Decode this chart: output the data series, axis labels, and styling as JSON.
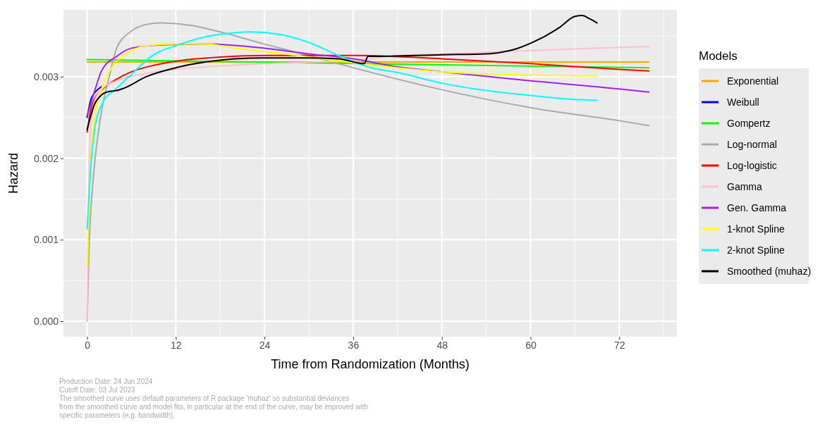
{
  "chart_data": {
    "type": "line",
    "xlabel": "Time from Randomization (Months)",
    "ylabel": "Hazard",
    "legend_title": "Models",
    "legend": "right",
    "grid": true,
    "xlim": [
      -3.2,
      79.8
    ],
    "ylim": [
      -0.00019,
      0.00382
    ],
    "xticks": [
      0,
      12,
      24,
      36,
      48,
      60,
      72
    ],
    "yticks": [
      {
        "value": 0,
        "label": "0.000"
      },
      {
        "value": 0.001,
        "label": "0.001"
      },
      {
        "value": 0.002,
        "label": "0.002"
      },
      {
        "value": 0.003,
        "label": "0.003"
      }
    ],
    "series": [
      {
        "name": "Exponential",
        "color": "#ffa500",
        "x": [
          0,
          76
        ],
        "values": [
          0.00318,
          0.00318
        ]
      },
      {
        "name": "Weibull",
        "color": "#0000ff",
        "x": [
          0,
          0.5,
          1,
          2
        ],
        "values": [
          0.0025,
          0.00272,
          0.0028,
          0.00288
        ]
      },
      {
        "name": "Gompertz",
        "color": "#00ff00",
        "x": [
          0,
          76
        ],
        "values": [
          0.00321,
          0.00311
        ]
      },
      {
        "name": "Log-normal",
        "color": "#aaaaaa",
        "x": [
          0,
          0.3,
          0.7,
          1,
          2,
          3,
          4,
          6,
          8,
          10,
          14,
          18,
          24,
          30,
          36,
          48,
          60,
          72,
          76
        ],
        "values": [
          0,
          0.001,
          0.0016,
          0.00192,
          0.0026,
          0.003,
          0.00335,
          0.00356,
          0.00364,
          0.00366,
          0.00363,
          0.00355,
          0.0034,
          0.00326,
          0.00311,
          0.00284,
          0.00262,
          0.00246,
          0.0024
        ]
      },
      {
        "name": "Log-logistic",
        "color": "#ff0000",
        "x": [
          0,
          0.5,
          1,
          2,
          4,
          6,
          9,
          12,
          18,
          24,
          36,
          48,
          60,
          72,
          76
        ],
        "values": [
          0.00232,
          0.0026,
          0.00273,
          0.00284,
          0.00297,
          0.00306,
          0.00314,
          0.00319,
          0.00324,
          0.00326,
          0.00326,
          0.00322,
          0.00316,
          0.00309,
          0.00307
        ]
      },
      {
        "name": "Gamma",
        "color": "#ffc0cb",
        "x": [
          0,
          0.2,
          0.5,
          1,
          2,
          4,
          8,
          12,
          24,
          36,
          42,
          48,
          60,
          72,
          76
        ],
        "values": [
          0,
          0.0015,
          0.0024,
          0.0027,
          0.00285,
          0.00295,
          0.00304,
          0.00309,
          0.00316,
          0.0032,
          0.00326,
          0.00328,
          0.00332,
          0.00336,
          0.00337
        ]
      },
      {
        "name": "Gen. Gamma",
        "color": "#a020f0",
        "x": [
          0,
          1,
          2,
          4,
          6,
          10,
          16,
          24,
          30,
          36,
          42,
          48,
          60,
          72,
          76
        ],
        "values": [
          0.00252,
          0.00282,
          0.00308,
          0.00325,
          0.00335,
          0.00339,
          0.0034,
          0.00335,
          0.00328,
          0.00322,
          0.00312,
          0.00306,
          0.00295,
          0.00285,
          0.00281
        ]
      },
      {
        "name": "1-knot Spline",
        "color": "#ffff00",
        "x": [
          0,
          0.5,
          1,
          2,
          3,
          4,
          6,
          8,
          12,
          16,
          20,
          24,
          30,
          36,
          42,
          48,
          60,
          69
        ],
        "values": [
          0.00068,
          0.002,
          0.00249,
          0.00286,
          0.00306,
          0.00319,
          0.00332,
          0.00338,
          0.0034,
          0.0034,
          0.00335,
          0.00331,
          0.00324,
          0.00317,
          0.00311,
          0.00306,
          0.00302,
          0.00301
        ]
      },
      {
        "name": "2-knot Spline",
        "color": "#00ffff",
        "x": [
          0,
          0.5,
          1,
          2,
          4,
          6,
          9,
          12,
          16,
          20,
          22,
          26,
          30,
          34,
          38,
          42,
          48,
          54,
          60,
          66,
          69
        ],
        "values": [
          0.00113,
          0.0019,
          0.00235,
          0.00266,
          0.00286,
          0.00303,
          0.00327,
          0.00338,
          0.00349,
          0.00354,
          0.00355,
          0.00352,
          0.00342,
          0.00326,
          0.00312,
          0.00305,
          0.00292,
          0.00283,
          0.00277,
          0.00272,
          0.00271
        ]
      },
      {
        "name": "Smoothed (muhaz)",
        "color": "#000000",
        "x": [
          0,
          1,
          2,
          3,
          4,
          5,
          8,
          12,
          16,
          20,
          24,
          30,
          34,
          37.5,
          38,
          38.5,
          48,
          54,
          56,
          58,
          60,
          62,
          64,
          66,
          67,
          68,
          69
        ],
        "values": [
          0.00235,
          0.00266,
          0.00278,
          0.00282,
          0.00283,
          0.00286,
          0.003,
          0.00311,
          0.00318,
          0.00322,
          0.00323,
          0.00323,
          0.00322,
          0.00316,
          0.00325,
          0.00325,
          0.00327,
          0.00328,
          0.0033,
          0.00334,
          0.00341,
          0.0035,
          0.00361,
          0.00374,
          0.00375,
          0.00371,
          0.00366
        ]
      }
    ],
    "annotations": [
      "Production Date: 24 Jun 2024",
      "Cutoff Date: 03 Jul 2023",
      "The smoothed curve uses default parameters of R package 'muhaz' so substantial deviances",
      "from the smoothed curve and model fits, in particular at the end of the curve, may be improved with",
      "specific parameters (e.g. bandwidth)."
    ]
  }
}
